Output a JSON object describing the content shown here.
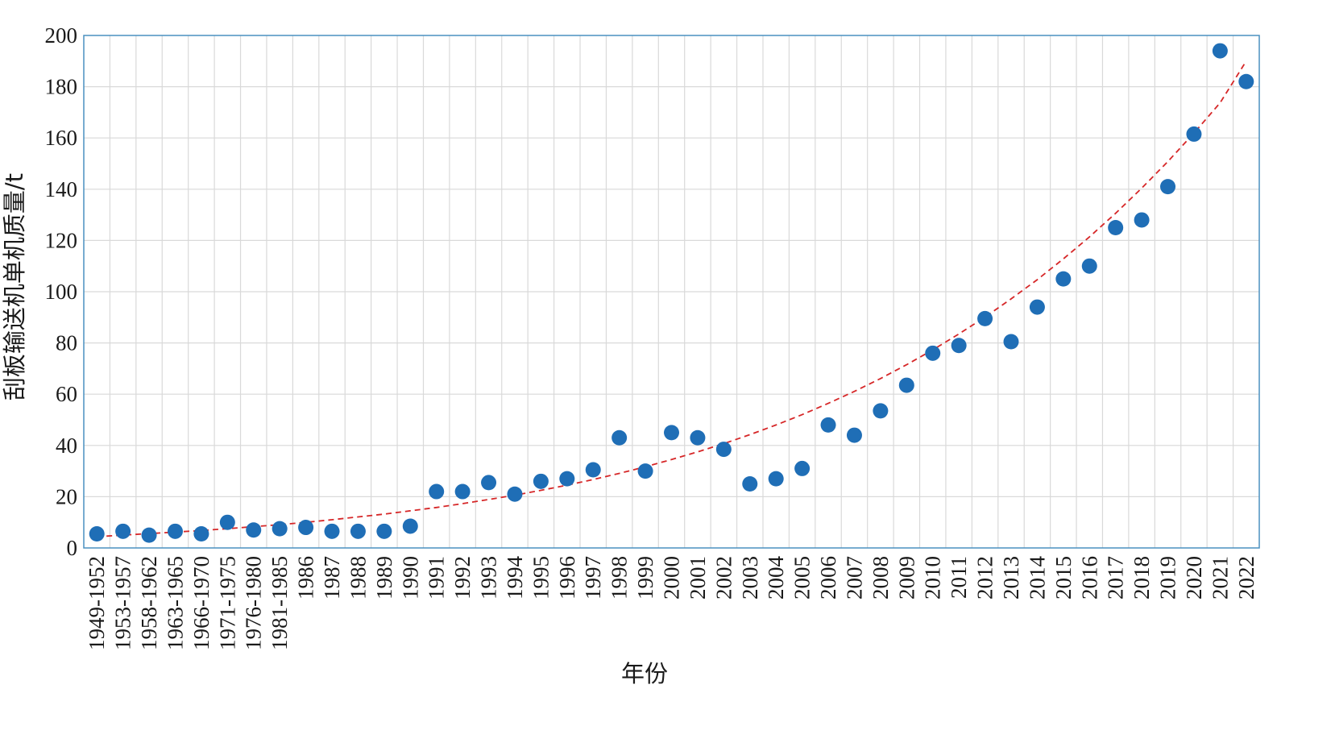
{
  "chart_data": {
    "type": "scatter",
    "xlabel": "年份",
    "ylabel": "刮板输送机单机质量/t",
    "ylim": [
      0,
      200
    ],
    "yticks": [
      0,
      20,
      40,
      60,
      80,
      100,
      120,
      140,
      160,
      180,
      200
    ],
    "grid": true,
    "legend": "none",
    "colors": {
      "points": "#1f6eb6",
      "trend": "#d62728",
      "grid": "#d9d9d9",
      "frame": "#4a90c0"
    },
    "categories": [
      "1949-1952",
      "1953-1957",
      "1958-1962",
      "1963-1965",
      "1966-1970",
      "1971-1975",
      "1976-1980",
      "1981-1985",
      "1986",
      "1987",
      "1988",
      "1989",
      "1990",
      "1991",
      "1992",
      "1993",
      "1994",
      "1995",
      "1996",
      "1997",
      "1998",
      "1999",
      "2000",
      "2001",
      "2002",
      "2003",
      "2004",
      "2005",
      "2006",
      "2007",
      "2008",
      "2009",
      "2010",
      "2011",
      "2012",
      "2013",
      "2014",
      "2015",
      "2016",
      "2017",
      "2018",
      "2019",
      "2020",
      "2021",
      "2022"
    ],
    "series": [
      {
        "style": "points",
        "values": [
          5.5,
          6.5,
          5,
          6.5,
          5.5,
          10,
          7,
          7.5,
          8,
          6.5,
          6.5,
          6.5,
          8.5,
          22,
          22,
          25.5,
          21,
          26,
          27,
          30.5,
          43,
          30,
          45,
          43,
          38.5,
          25,
          27,
          31,
          48,
          44,
          53.5,
          63.5,
          76,
          79,
          89.5,
          80.5,
          94,
          105,
          110,
          125,
          128,
          141,
          161.5,
          194,
          182
        ]
      },
      {
        "style": "dashed-trend",
        "values": [
          4.4,
          5.0,
          5.6,
          6.2,
          6.8,
          7.5,
          8.3,
          9.1,
          10.0,
          11.0,
          12.1,
          13.2,
          14.5,
          15.8,
          17.3,
          18.9,
          20.6,
          22.5,
          24.5,
          26.7,
          29.1,
          31.7,
          34.5,
          37.5,
          40.7,
          44.2,
          48.0,
          52.0,
          56.4,
          61.1,
          66.1,
          71.5,
          77.3,
          83.5,
          90.1,
          97.2,
          104.7,
          112.8,
          121.4,
          130.6,
          140.4,
          150.8,
          161.9,
          173.7,
          190
        ]
      }
    ]
  }
}
